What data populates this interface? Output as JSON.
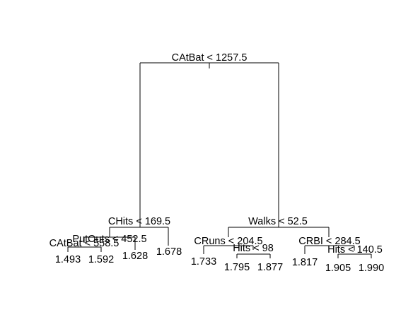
{
  "tree": {
    "root_split": "CAtBat < 1257.5",
    "left": {
      "split": "CHits < 169.5",
      "left": {
        "split": "PutOuts < 452.5",
        "left": {
          "split": "CAtBat < 558.5",
          "leaves": [
            "1.493",
            "1.592"
          ]
        },
        "right_leaf": "1.628"
      },
      "right_leaf": "1.678"
    },
    "right": {
      "split": "Walks < 52.5",
      "left": {
        "split": "CRuns < 204.5",
        "left_leaf": "1.733",
        "right": {
          "split": "Hits < 98",
          "leaves": [
            "1.795",
            "1.877"
          ]
        }
      },
      "right": {
        "split": "CRBI < 284.5",
        "left_leaf": "1.817",
        "right": {
          "split": "Hits < 140.5",
          "leaves": [
            "1.905",
            "1.990"
          ]
        }
      }
    }
  }
}
